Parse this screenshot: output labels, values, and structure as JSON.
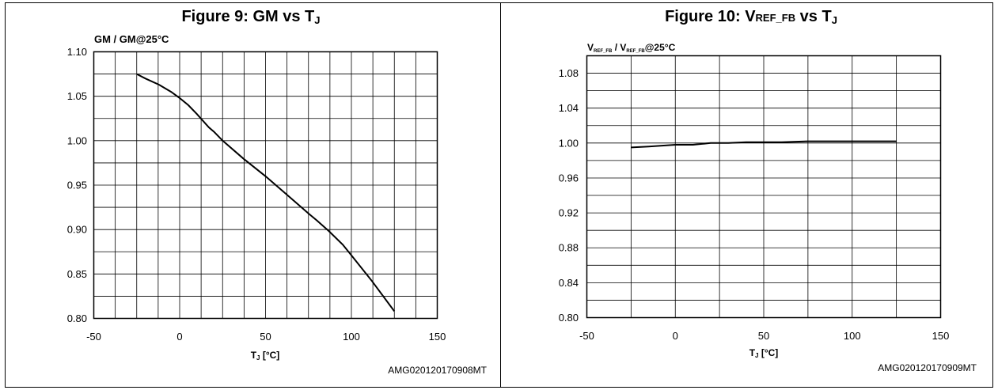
{
  "chart_data": [
    {
      "type": "line",
      "title_main": "Figure 9: GM vs T",
      "title_sub": "J",
      "ylabel": "GM / GM@25°C",
      "xlabel_main": "T",
      "xlabel_sub": "J",
      "xlabel_rest": " [°C]",
      "code": "AMG020120170908MT",
      "xlim": [
        -50,
        150
      ],
      "ylim": [
        0.8,
        1.1
      ],
      "xticks": [
        -50,
        0,
        50,
        100,
        150
      ],
      "yticks": [
        "0.80",
        "0.85",
        "0.90",
        "0.95",
        "1.00",
        "1.05",
        "1.10"
      ],
      "grid": {
        "x_step": 12.5,
        "y_step": 0.025
      },
      "grid_on": true,
      "series": [
        {
          "x": [
            -25,
            -20,
            -12,
            -5,
            0,
            5,
            10,
            17,
            20,
            25,
            37,
            50,
            62,
            75,
            80,
            87,
            95,
            100,
            112,
            125
          ],
          "y": [
            1.075,
            1.07,
            1.063,
            1.055,
            1.048,
            1.04,
            1.03,
            1.015,
            1.01,
            1.0,
            0.98,
            0.96,
            0.94,
            0.918,
            0.91,
            0.898,
            0.883,
            0.871,
            0.842,
            0.808
          ]
        }
      ]
    },
    {
      "type": "line",
      "title_main": "Figure 10: V",
      "title_sub": "REF_FB",
      "title_rest": " vs T",
      "title_sub2": "J",
      "ylabel_main": "V",
      "ylabel_sub": "REF_FB",
      "ylabel_mid": " / V",
      "ylabel_sub2": "REF_FB",
      "ylabel_rest": "@25°C",
      "xlabel_main": "T",
      "xlabel_sub": "J",
      "xlabel_rest": " [°C]",
      "code": "AMG020120170909MT",
      "xlim": [
        -50,
        150
      ],
      "ylim": [
        0.8,
        1.1
      ],
      "xticks": [
        -50,
        0,
        50,
        100,
        150
      ],
      "yticks": [
        "0.80",
        "0.84",
        "0.88",
        "0.92",
        "0.96",
        "1.00",
        "1.04",
        "1.08"
      ],
      "grid": {
        "x_step": 25,
        "y_step": 0.02
      },
      "grid_on": true,
      "series": [
        {
          "x": [
            -25,
            -15,
            0,
            10,
            15,
            20,
            30,
            40,
            50,
            60,
            75,
            100,
            125
          ],
          "y": [
            0.995,
            0.996,
            0.998,
            0.998,
            0.999,
            1.0,
            1.0,
            1.001,
            1.001,
            1.001,
            1.002,
            1.002,
            1.002
          ]
        }
      ]
    }
  ]
}
